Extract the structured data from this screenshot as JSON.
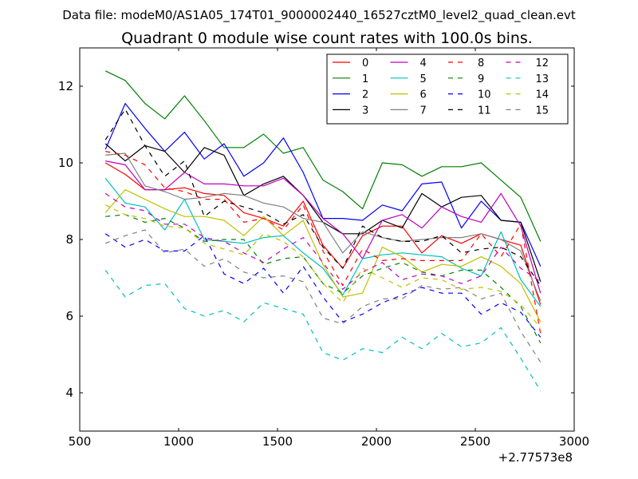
{
  "chart_data": {
    "type": "line",
    "suptitle": "Data file: modeM0/AS1A05_174T01_9000002440_16527cztM0_level2_quad_clean.evt",
    "title": "Quadrant 0 module wise count rates with 100.0s bins.",
    "xlabel": "",
    "ylabel": "",
    "x_offset_label": "+2.77573e8",
    "xlim": [
      500,
      3000
    ],
    "ylim": [
      3,
      13
    ],
    "xticks": [
      "500",
      "1000",
      "1500",
      "2000",
      "2500",
      "3000"
    ],
    "yticks": [
      "4",
      "6",
      "8",
      "10",
      "12"
    ],
    "grid": false,
    "legend_position": "top-right",
    "x": [
      630,
      730,
      830,
      930,
      1030,
      1130,
      1230,
      1330,
      1430,
      1530,
      1630,
      1730,
      1830,
      1930,
      2030,
      2130,
      2230,
      2330,
      2430,
      2530,
      2630,
      2730,
      2830
    ],
    "series": [
      {
        "name": "0",
        "color": "#ff0000",
        "dash": "solid",
        "values": [
          10.0,
          9.7,
          9.3,
          9.3,
          9.35,
          9.2,
          9.15,
          8.7,
          8.55,
          8.35,
          9.0,
          7.85,
          7.25,
          8.1,
          8.35,
          8.35,
          7.65,
          8.1,
          7.9,
          8.15,
          8.0,
          7.85,
          6.3
        ]
      },
      {
        "name": "1",
        "color": "#008000",
        "dash": "solid",
        "values": [
          12.4,
          12.15,
          11.55,
          11.15,
          11.75,
          11.1,
          10.4,
          10.4,
          10.75,
          10.25,
          10.4,
          9.55,
          9.25,
          8.8,
          10.0,
          9.95,
          9.65,
          9.9,
          9.9,
          10.0,
          9.55,
          9.1,
          7.95
        ]
      },
      {
        "name": "2",
        "color": "#0000ff",
        "dash": "solid",
        "values": [
          10.35,
          11.55,
          10.9,
          10.3,
          10.8,
          10.1,
          10.5,
          9.65,
          10.0,
          10.65,
          9.75,
          8.55,
          8.55,
          8.5,
          8.9,
          8.75,
          9.45,
          9.5,
          8.3,
          9.0,
          8.5,
          8.45,
          7.3
        ]
      },
      {
        "name": "3",
        "color": "#000000",
        "dash": "solid",
        "values": [
          10.5,
          10.05,
          10.45,
          10.3,
          9.75,
          10.4,
          10.2,
          9.15,
          9.45,
          9.65,
          9.15,
          8.45,
          8.15,
          8.15,
          8.5,
          8.3,
          9.2,
          8.85,
          9.1,
          9.15,
          8.5,
          8.45,
          6.9
        ]
      },
      {
        "name": "4",
        "color": "#bf00bf",
        "dash": "solid",
        "values": [
          10.05,
          9.95,
          9.3,
          9.3,
          9.75,
          9.45,
          9.45,
          9.4,
          9.4,
          9.6,
          9.15,
          8.55,
          8.15,
          7.5,
          8.5,
          8.65,
          8.3,
          8.85,
          8.6,
          8.45,
          9.2,
          8.35,
          6.6
        ]
      },
      {
        "name": "5",
        "color": "#00bfbf",
        "dash": "solid",
        "values": [
          9.6,
          8.95,
          8.85,
          8.25,
          9.05,
          8.0,
          7.95,
          7.9,
          8.05,
          8.1,
          7.65,
          7.25,
          6.55,
          7.5,
          7.6,
          7.65,
          7.6,
          7.55,
          7.25,
          7.05,
          8.2,
          6.95,
          6.25
        ]
      },
      {
        "name": "6",
        "color": "#bfbf00",
        "dash": "solid",
        "values": [
          8.7,
          9.3,
          9.05,
          8.8,
          8.6,
          8.6,
          8.5,
          8.1,
          8.6,
          8.1,
          8.5,
          7.35,
          6.5,
          6.6,
          7.8,
          7.55,
          7.15,
          7.35,
          7.3,
          7.55,
          7.3,
          6.85,
          5.85
        ]
      },
      {
        "name": "7",
        "color": "#808080",
        "dash": "solid",
        "values": [
          10.2,
          10.25,
          9.4,
          9.25,
          9.05,
          9.1,
          9.2,
          9.15,
          8.95,
          8.85,
          8.55,
          8.45,
          7.65,
          8.2,
          8.05,
          7.95,
          8.0,
          8.05,
          8.05,
          8.15,
          8.0,
          7.7,
          6.4
        ]
      },
      {
        "name": "8",
        "color": "#ff0000",
        "dash": "dashed",
        "values": [
          10.3,
          10.2,
          9.95,
          9.35,
          9.25,
          9.05,
          9.05,
          8.45,
          8.55,
          8.25,
          8.9,
          7.7,
          6.8,
          7.75,
          7.45,
          7.5,
          7.45,
          7.45,
          7.45,
          8.15,
          7.55,
          8.4,
          5.55
        ]
      },
      {
        "name": "9",
        "color": "#008000",
        "dash": "dashed",
        "values": [
          8.6,
          8.65,
          8.45,
          8.55,
          8.3,
          7.95,
          8.0,
          8.0,
          7.35,
          7.5,
          7.55,
          6.85,
          6.6,
          7.05,
          7.25,
          7.4,
          7.15,
          7.05,
          7.2,
          7.2,
          6.75,
          6.25,
          5.3
        ]
      },
      {
        "name": "10",
        "color": "#0000ff",
        "dash": "dashed",
        "values": [
          8.15,
          7.8,
          8.0,
          7.7,
          7.7,
          8.1,
          7.1,
          6.85,
          7.25,
          6.6,
          7.3,
          6.5,
          5.85,
          6.05,
          6.35,
          6.55,
          6.75,
          6.6,
          6.6,
          6.05,
          6.35,
          6.1,
          5.45
        ]
      },
      {
        "name": "11",
        "color": "#000000",
        "dash": "dashed",
        "values": [
          10.6,
          11.4,
          10.45,
          9.65,
          10.05,
          8.6,
          9.0,
          8.85,
          8.7,
          8.4,
          8.65,
          7.8,
          7.25,
          8.35,
          8.05,
          7.95,
          7.95,
          8.1,
          7.65,
          7.75,
          7.8,
          7.55,
          6.8
        ]
      },
      {
        "name": "12",
        "color": "#bf00bf",
        "dash": "dashed",
        "values": [
          9.2,
          8.85,
          8.75,
          8.4,
          8.4,
          8.05,
          7.95,
          7.65,
          7.4,
          7.75,
          8.05,
          7.4,
          6.7,
          7.15,
          7.4,
          6.95,
          7.1,
          7.05,
          6.85,
          7.05,
          7.8,
          7.25,
          6.9
        ]
      },
      {
        "name": "13",
        "color": "#00bfbf",
        "dash": "dashed",
        "values": [
          7.2,
          6.5,
          6.8,
          6.85,
          6.2,
          6.0,
          6.15,
          5.85,
          6.35,
          6.2,
          6.05,
          5.05,
          4.85,
          5.15,
          5.05,
          5.45,
          5.15,
          5.55,
          5.2,
          5.3,
          5.7,
          4.9,
          4.05
        ]
      },
      {
        "name": "14",
        "color": "#bfbf00",
        "dash": "dashed",
        "values": [
          8.9,
          8.65,
          8.55,
          8.35,
          8.3,
          7.9,
          7.75,
          7.6,
          8.15,
          7.95,
          7.55,
          6.85,
          6.35,
          7.25,
          7.0,
          6.75,
          7.0,
          6.95,
          6.7,
          6.75,
          6.65,
          6.3,
          5.7
        ]
      },
      {
        "name": "15",
        "color": "#808080",
        "dash": "dashed",
        "values": [
          7.9,
          8.1,
          8.25,
          7.65,
          7.75,
          7.3,
          7.5,
          7.15,
          7.0,
          7.05,
          6.9,
          5.95,
          5.8,
          6.25,
          6.45,
          6.45,
          6.8,
          6.7,
          6.75,
          6.45,
          6.6,
          5.6,
          4.8
        ]
      }
    ]
  }
}
